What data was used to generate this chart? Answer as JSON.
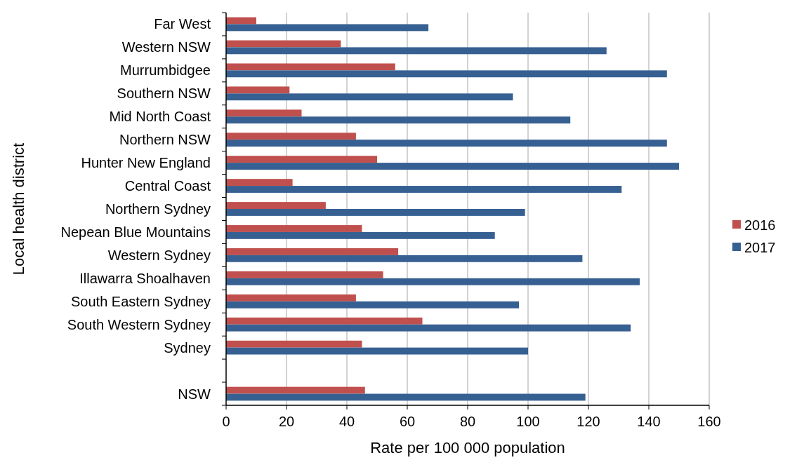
{
  "chart_data": {
    "type": "bar",
    "orientation": "horizontal",
    "ylabel": "Local health district",
    "xlabel": "Rate per 100 000 population",
    "categories": [
      "Far West",
      "Western NSW",
      "Murrumbidgee",
      "Southern NSW",
      "Mid North Coast",
      "Northern NSW",
      "Hunter New England",
      "Central Coast",
      "Northern Sydney",
      "Nepean Blue Mountains",
      "Western Sydney",
      "Illawarra Shoalhaven",
      "South Eastern Sydney",
      "South Western Sydney",
      "Sydney",
      null,
      "NSW"
    ],
    "series": [
      {
        "name": "2016",
        "color": "#c0504d",
        "values": [
          10,
          38,
          56,
          21,
          25,
          43,
          50,
          22,
          33,
          45,
          57,
          52,
          43,
          65,
          45,
          null,
          46
        ]
      },
      {
        "name": "2017",
        "color": "#376092",
        "values": [
          67,
          126,
          146,
          95,
          114,
          146,
          150,
          131,
          99,
          89,
          118,
          137,
          97,
          134,
          100,
          null,
          119
        ]
      }
    ],
    "xlim": [
      0,
      160
    ],
    "xticks": [
      0,
      20,
      40,
      60,
      80,
      100,
      120,
      140,
      160
    ],
    "grid": "x",
    "legend": "right"
  }
}
